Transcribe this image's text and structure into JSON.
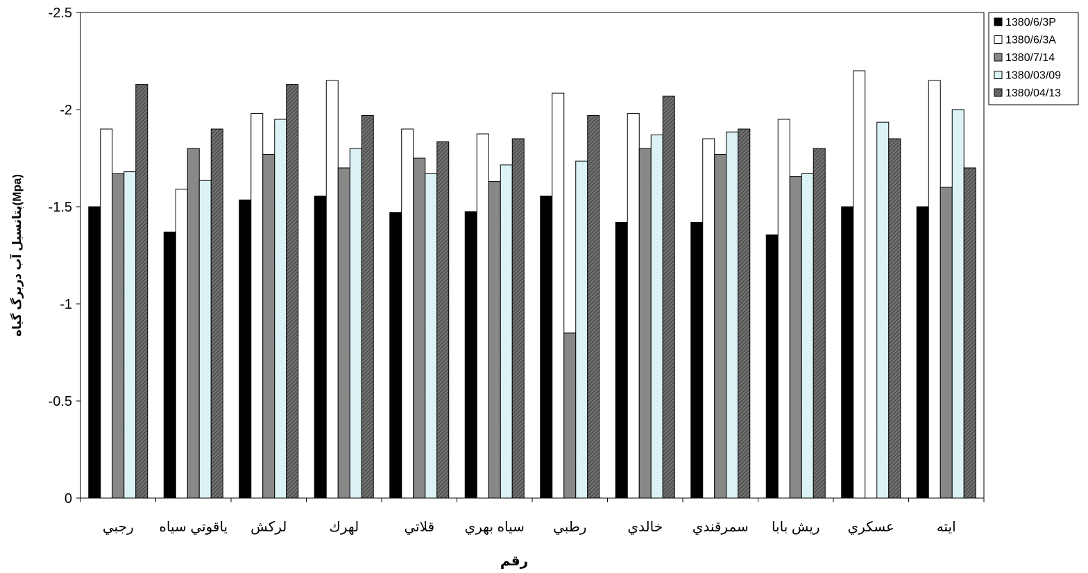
{
  "chart_data": {
    "type": "bar",
    "title": "",
    "xlabel": "رقم",
    "ylabel": "پتانسيل آب دربرگ گياه(Mpa)",
    "ylim": [
      0,
      -2.5
    ],
    "y_axis_inverted": true,
    "yticks": [
      "-2.5",
      "-2",
      "-1.5",
      "-1",
      "-0.5",
      "0"
    ],
    "ytick_values": [
      -2.5,
      -2,
      -1.5,
      -1,
      -0.5,
      0
    ],
    "grid": false,
    "legend_position": "top-right",
    "categories": [
      "رجبي",
      "ياقوتي سياه",
      "لركش",
      "لهرك",
      "قلاتي",
      "سياه بهري",
      "رطبي",
      "خالدي",
      "سمرقندي",
      "ريش بابا",
      "عسكري",
      "ايته"
    ],
    "series": [
      {
        "name": "1380/6/3P",
        "fill": "#000000",
        "pattern": "solid",
        "values": [
          -1.5,
          -1.37,
          -1.535,
          -1.555,
          -1.47,
          -1.475,
          -1.555,
          -1.42,
          -1.42,
          -1.355,
          -1.5,
          -1.5
        ]
      },
      {
        "name": "1380/6/3A",
        "fill": "#ffffff",
        "pattern": "solid",
        "values": [
          -1.9,
          -1.59,
          -1.98,
          -2.15,
          -1.9,
          -1.875,
          -2.085,
          -1.98,
          -1.85,
          -1.95,
          -2.2,
          -2.15
        ]
      },
      {
        "name": "1380/7/14",
        "fill": "#888888",
        "pattern": "solid",
        "values": [
          -1.67,
          -1.8,
          -1.77,
          -1.7,
          -1.75,
          -1.63,
          -0.85,
          -1.8,
          -1.77,
          -1.655,
          null,
          -1.6
        ]
      },
      {
        "name": "1380/03/09",
        "fill": "#c8eef2",
        "pattern": "checker",
        "values": [
          -1.68,
          -1.635,
          -1.95,
          -1.8,
          -1.67,
          -1.715,
          -1.735,
          -1.87,
          -1.885,
          -1.67,
          -1.935,
          -2.0
        ]
      },
      {
        "name": "1380/04/13",
        "fill": "#5a5a5a",
        "pattern": "hatch",
        "values": [
          -2.13,
          -1.9,
          -2.13,
          -1.97,
          -1.835,
          -1.85,
          -1.97,
          -2.07,
          -1.9,
          -1.8,
          -1.85,
          -1.7
        ]
      }
    ]
  }
}
